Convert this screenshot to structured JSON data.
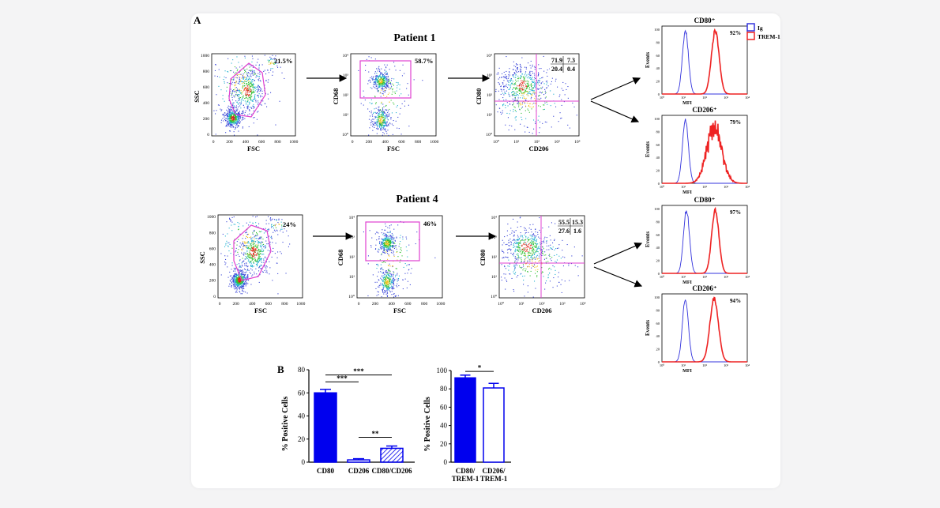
{
  "panel_labels": {
    "a": "A",
    "b": "B"
  },
  "patient1": {
    "title": "Patient 1",
    "fsc_ssc": {
      "gate_pct": "21.5%",
      "xlabel": "FSC",
      "ylabel": "SSC",
      "xticks": [
        "0",
        "200",
        "400",
        "600",
        "800",
        "1000"
      ],
      "yticks": [
        "0",
        "200",
        "400",
        "600",
        "800",
        "1000"
      ]
    },
    "fsc_cd68": {
      "gate_pct": "58.7%",
      "xlabel": "FSC",
      "ylabel": "CD68",
      "xticks": [
        "0",
        "200",
        "400",
        "600",
        "800",
        "1000"
      ],
      "yticks": [
        "10⁰",
        "10¹",
        "10²",
        "10³",
        "10⁴"
      ]
    },
    "cd206_cd80": {
      "quadrants": [
        "71.9",
        "7.3",
        "20.4",
        "0.4"
      ],
      "xlabel": "CD206",
      "ylabel": "CD80",
      "xticks": [
        "10⁰",
        "10¹",
        "10²",
        "10³",
        "10⁴"
      ],
      "yticks": [
        "10⁰",
        "10¹",
        "10²",
        "10³",
        "10⁴"
      ]
    }
  },
  "patient4": {
    "title": "Patient 4",
    "fsc_ssc": {
      "gate_pct": "24%",
      "xlabel": "FSC",
      "ylabel": "SSC",
      "xticks": [
        "0",
        "200",
        "400",
        "600",
        "800",
        "1000"
      ],
      "yticks": [
        "0",
        "200",
        "400",
        "600",
        "800",
        "1000"
      ]
    },
    "fsc_cd68": {
      "gate_pct": "46%",
      "xlabel": "FSC",
      "ylabel": "CD68",
      "xticks": [
        "0",
        "200",
        "400",
        "600",
        "800",
        "1000"
      ],
      "yticks": [
        "10⁰",
        "10¹",
        "10²",
        "10³",
        "10⁴"
      ]
    },
    "cd206_cd80": {
      "quadrants": [
        "55.5",
        "15.3",
        "27.6",
        "1.6"
      ],
      "xlabel": "CD206",
      "ylabel": "CD80",
      "xticks": [
        "10⁰",
        "10¹",
        "10²",
        "10³",
        "10⁴"
      ],
      "yticks": [
        "10⁰",
        "10¹",
        "10²",
        "10³",
        "10⁴"
      ]
    }
  },
  "histograms": [
    {
      "title": "CD80⁺",
      "pct": "92%",
      "xlabel": "MFI",
      "ylabel": "Events",
      "ig_peak": 1.1,
      "trem_peak": 2.5,
      "trem_spread": 0.18,
      "trem_jagged": false
    },
    {
      "title": "CD206⁺",
      "pct": "79%",
      "xlabel": "MFI",
      "ylabel": "Events",
      "ig_peak": 1.1,
      "trem_peak": 2.45,
      "trem_spread": 0.35,
      "trem_jagged": true
    },
    {
      "title": "CD80⁺",
      "pct": "97%",
      "xlabel": "MFI",
      "ylabel": "Events",
      "ig_peak": 1.15,
      "trem_peak": 2.5,
      "trem_spread": 0.17,
      "trem_jagged": false
    },
    {
      "title": "CD206⁺",
      "pct": "94%",
      "xlabel": "MFI",
      "ylabel": "Events",
      "ig_peak": 1.1,
      "trem_peak": 2.45,
      "trem_spread": 0.2,
      "trem_jagged": false
    }
  ],
  "hist_axis": {
    "yticks": [
      "0",
      "20",
      "40",
      "60",
      "80",
      "100"
    ],
    "xticks": [
      "10⁰",
      "10¹",
      "10²",
      "10³",
      "10⁴"
    ]
  },
  "legend": {
    "ig": "Ig",
    "trem": "TREM-1",
    "ig_color": "#3333dd",
    "trem_color": "#ee2222"
  },
  "colors": {
    "gate": "#e040d0",
    "bar_blue": "#0000ee"
  },
  "chart_data": [
    {
      "type": "bar",
      "title": "",
      "ylabel": "% Positive Cells",
      "xlabel": "",
      "ylim": [
        0,
        80
      ],
      "yticks": [
        "0",
        "20",
        "40",
        "60",
        "80"
      ],
      "categories": [
        "CD80",
        "CD206",
        "CD80/CD206"
      ],
      "values": [
        60,
        2,
        12
      ],
      "errors": [
        3,
        1,
        2
      ],
      "styles": [
        "solid",
        "hollow",
        "hatched"
      ],
      "significance": [
        {
          "from": 0,
          "to": 1,
          "label": "***"
        },
        {
          "from": 0,
          "to": 2,
          "label": "***"
        },
        {
          "from": 1,
          "to": 2,
          "label": "**"
        }
      ]
    },
    {
      "type": "bar",
      "title": "",
      "ylabel": "% Positive Cells",
      "xlabel": "",
      "ylim": [
        0,
        100
      ],
      "yticks": [
        "0",
        "20",
        "40",
        "60",
        "80",
        "100"
      ],
      "categories": [
        "CD80/ TREM-1",
        "CD206/ TREM-1"
      ],
      "category_lines": [
        [
          "CD80/",
          "TREM-1"
        ],
        [
          "CD206/",
          "TREM-1"
        ]
      ],
      "values": [
        92,
        81
      ],
      "errors": [
        3,
        5
      ],
      "styles": [
        "solid",
        "hollow"
      ],
      "significance": [
        {
          "from": 0,
          "to": 1,
          "label": "*"
        }
      ]
    }
  ]
}
